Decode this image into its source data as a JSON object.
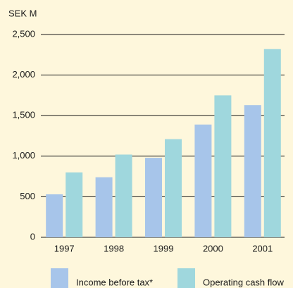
{
  "chart_data": {
    "type": "bar",
    "y_axis_label": "SEK M",
    "categories": [
      "1997",
      "1998",
      "1999",
      "2000",
      "2001"
    ],
    "series": [
      {
        "name": "Income before tax*",
        "color": "#a7c5ea",
        "values": [
          530,
          740,
          980,
          1390,
          1630
        ]
      },
      {
        "name": "Operating cash flow",
        "color": "#9fd7dd",
        "values": [
          800,
          1020,
          1210,
          1750,
          2320
        ]
      }
    ],
    "ylim": [
      0,
      2500
    ],
    "yticks": [
      0,
      500,
      {
        "value": 1000,
        "label": "1,000"
      },
      {
        "value": 1500,
        "label": "1,500"
      },
      {
        "value": 2000,
        "label": "2,000"
      },
      {
        "value": 2500,
        "label": "2,500"
      }
    ],
    "grid": true
  }
}
